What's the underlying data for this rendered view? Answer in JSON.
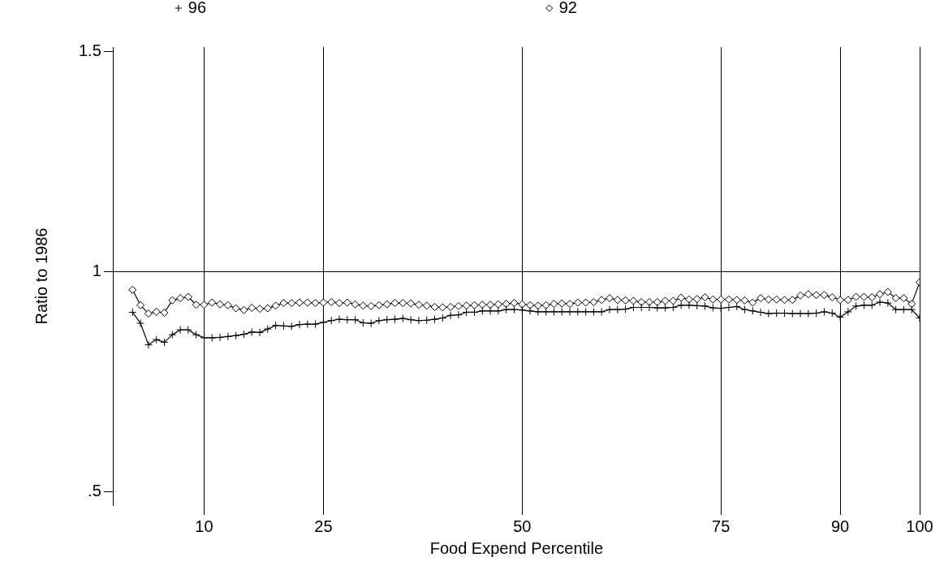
{
  "chart_data": {
    "type": "line",
    "xlabel": "Food Expend Percentile",
    "ylabel": "Ratio to 1986",
    "x": [
      1,
      2,
      3,
      4,
      5,
      6,
      7,
      8,
      9,
      10,
      11,
      12,
      13,
      14,
      15,
      16,
      17,
      18,
      19,
      20,
      21,
      22,
      23,
      24,
      25,
      26,
      27,
      28,
      29,
      30,
      31,
      32,
      33,
      34,
      35,
      36,
      37,
      38,
      39,
      40,
      41,
      42,
      43,
      44,
      45,
      46,
      47,
      48,
      49,
      50,
      51,
      52,
      53,
      54,
      55,
      56,
      57,
      58,
      59,
      60,
      61,
      62,
      63,
      64,
      65,
      66,
      67,
      68,
      69,
      70,
      71,
      72,
      73,
      74,
      75,
      76,
      77,
      78,
      79,
      80,
      81,
      82,
      83,
      84,
      85,
      86,
      87,
      88,
      89,
      90,
      91,
      92,
      93,
      94,
      95,
      96,
      97,
      98,
      99,
      100
    ],
    "series": [
      {
        "name": "96",
        "color": "#000000",
        "marker": "cross",
        "values": [
          0.908,
          0.883,
          0.834,
          0.846,
          0.84,
          0.857,
          0.868,
          0.868,
          0.857,
          0.85,
          0.85,
          0.851,
          0.853,
          0.855,
          0.858,
          0.863,
          0.862,
          0.87,
          0.878,
          0.877,
          0.876,
          0.88,
          0.881,
          0.881,
          0.885,
          0.889,
          0.892,
          0.891,
          0.891,
          0.884,
          0.883,
          0.889,
          0.891,
          0.892,
          0.894,
          0.891,
          0.889,
          0.89,
          0.892,
          0.895,
          0.901,
          0.902,
          0.908,
          0.908,
          0.911,
          0.911,
          0.911,
          0.914,
          0.914,
          0.913,
          0.911,
          0.909,
          0.909,
          0.909,
          0.909,
          0.909,
          0.909,
          0.909,
          0.909,
          0.909,
          0.914,
          0.914,
          0.915,
          0.919,
          0.919,
          0.919,
          0.918,
          0.918,
          0.919,
          0.924,
          0.924,
          0.923,
          0.922,
          0.918,
          0.917,
          0.919,
          0.921,
          0.914,
          0.911,
          0.908,
          0.905,
          0.906,
          0.906,
          0.905,
          0.905,
          0.905,
          0.906,
          0.909,
          0.906,
          0.897,
          0.909,
          0.922,
          0.924,
          0.924,
          0.931,
          0.929,
          0.914,
          0.914,
          0.914,
          0.895
        ]
      },
      {
        "name": "92",
        "color": "#000000",
        "marker": "diamond",
        "values": [
          0.959,
          0.924,
          0.905,
          0.909,
          0.907,
          0.935,
          0.94,
          0.943,
          0.925,
          0.925,
          0.93,
          0.926,
          0.924,
          0.917,
          0.913,
          0.918,
          0.916,
          0.917,
          0.923,
          0.929,
          0.929,
          0.93,
          0.93,
          0.929,
          0.93,
          0.931,
          0.929,
          0.93,
          0.926,
          0.923,
          0.922,
          0.924,
          0.926,
          0.929,
          0.929,
          0.928,
          0.925,
          0.923,
          0.92,
          0.919,
          0.92,
          0.922,
          0.923,
          0.924,
          0.925,
          0.925,
          0.926,
          0.927,
          0.929,
          0.926,
          0.924,
          0.923,
          0.924,
          0.927,
          0.928,
          0.927,
          0.93,
          0.93,
          0.931,
          0.936,
          0.94,
          0.936,
          0.935,
          0.934,
          0.931,
          0.931,
          0.931,
          0.934,
          0.934,
          0.941,
          0.937,
          0.938,
          0.942,
          0.937,
          0.937,
          0.937,
          0.936,
          0.935,
          0.93,
          0.94,
          0.937,
          0.937,
          0.936,
          0.936,
          0.946,
          0.949,
          0.947,
          0.947,
          0.942,
          0.936,
          0.936,
          0.943,
          0.943,
          0.942,
          0.949,
          0.954,
          0.94,
          0.94,
          0.927,
          0.976
        ]
      }
    ],
    "xlim": [
      -1.4,
      100
    ],
    "xticks": [
      10,
      25,
      50,
      75,
      90,
      100
    ],
    "ylim": [
      0.47,
      1.51
    ],
    "yticks": [
      {
        "value": 0.5,
        "label": ".5"
      },
      1,
      1.5
    ],
    "grid": "x",
    "legend": "top left",
    "line_style": "solid",
    "ref_lines": [
      {
        "axis": "y",
        "value": 1,
        "color": "#000000"
      }
    ]
  }
}
